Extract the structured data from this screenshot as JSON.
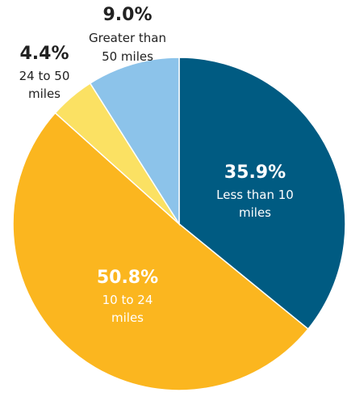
{
  "chart_data": {
    "type": "pie",
    "start_angle_deg": 0,
    "direction": "clockwise",
    "slices": [
      {
        "label_lines": [
          "Less than 10",
          "miles"
        ],
        "value": 35.9,
        "value_text": "35.9%",
        "color": "#005b82",
        "label_color": "#ffffff"
      },
      {
        "label_lines": [
          "10 to 24",
          "miles"
        ],
        "value": 50.8,
        "value_text": "50.8%",
        "color": "#fbb61f",
        "label_color": "#ffffff"
      },
      {
        "label_lines": [
          "24 to 50",
          "miles"
        ],
        "value": 4.4,
        "value_text": "4.4%",
        "color": "#fbe163",
        "label_color": "#222222"
      },
      {
        "label_lines": [
          "Greater than",
          "50 miles"
        ],
        "value": 9.0,
        "value_text": "9.0%",
        "color": "#8cc3ea",
        "label_color": "#222222"
      }
    ]
  }
}
